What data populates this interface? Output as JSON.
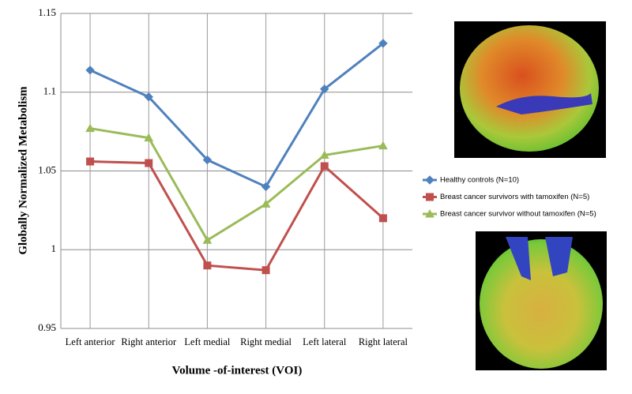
{
  "chart_data": {
    "type": "line",
    "x_label": "Volume -of-interest (VOI)",
    "y_label": "Globally Normalized Metabolism",
    "categories": [
      "Left anterior",
      "Right anterior",
      "Left medial",
      "Right medial",
      "Left lateral",
      "Right lateral"
    ],
    "series": [
      {
        "name": "Healthy controls (N=10)",
        "color": "#4f81bd",
        "marker": "diamond",
        "values": [
          1.114,
          1.097,
          1.057,
          1.04,
          1.102,
          1.131
        ]
      },
      {
        "name": "Breast cancer survivors with tamoxifen (N=5)",
        "color": "#c0504d",
        "marker": "square",
        "values": [
          1.056,
          1.055,
          0.99,
          0.987,
          1.053,
          1.02
        ]
      },
      {
        "name": "Breast cancer survivor without tamoxifen (N=5)",
        "color": "#9bbb59",
        "marker": "triangle",
        "values": [
          1.077,
          1.071,
          1.006,
          1.029,
          1.06,
          1.066
        ]
      }
    ],
    "ylim": [
      0.95,
      1.15
    ],
    "yticks": [
      0.95,
      1,
      1.05,
      1.1,
      1.15
    ],
    "grid": true
  }
}
